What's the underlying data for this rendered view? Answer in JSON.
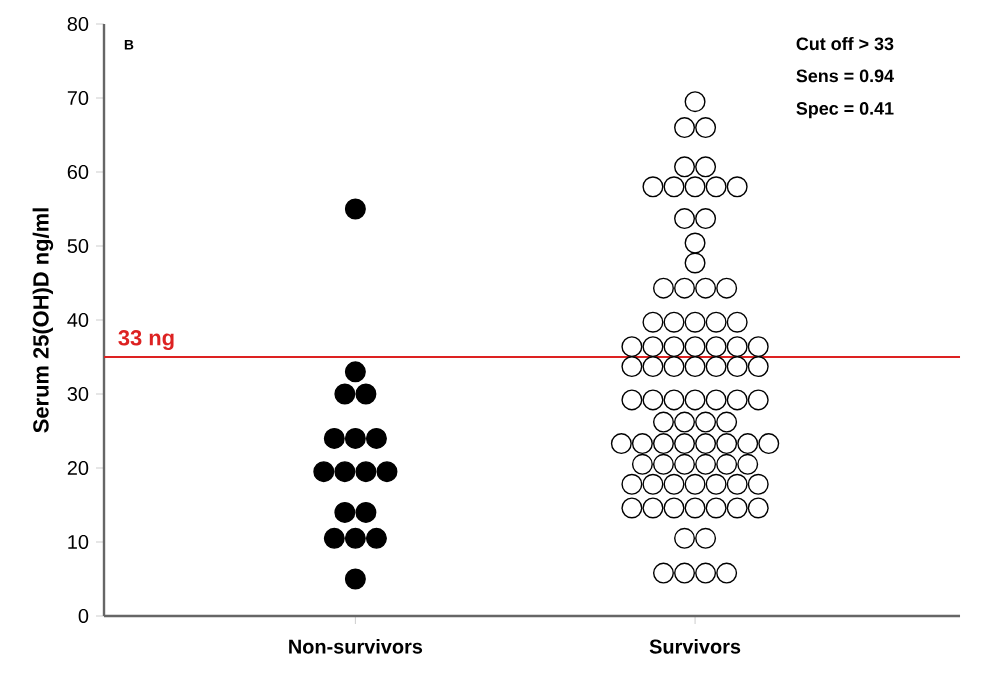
{
  "chart_data": {
    "type": "scatter",
    "ylabel": "Serum 25(OH)D ng/ml",
    "categories": [
      "Non-survivors",
      "Survivors"
    ],
    "series": [
      {
        "x": [
          "Non-survivors",
          "Non-survivors",
          "Non-survivors",
          "Non-survivors",
          "Non-survivors",
          "Non-survivors",
          "Non-survivors",
          "Non-survivors",
          "Non-survivors",
          "Non-survivors",
          "Non-survivors",
          "Non-survivors",
          "Non-survivors",
          "Non-survivors",
          "Non-survivors",
          "Non-survivors",
          "Non-survivors"
        ],
        "values": [
          55,
          33,
          30,
          30,
          24,
          24,
          24,
          19.5,
          19.5,
          19.5,
          19.5,
          14,
          14,
          10.5,
          10.5,
          10.5,
          5
        ],
        "color": "#000000"
      },
      {
        "x": [
          "Survivors",
          "Survivors",
          "Survivors",
          "Survivors",
          "Survivors",
          "Survivors",
          "Survivors",
          "Survivors",
          "Survivors",
          "Survivors",
          "Survivors",
          "Survivors",
          "Survivors",
          "Survivors",
          "Survivors",
          "Survivors",
          "Survivors",
          "Survivors",
          "Survivors",
          "Survivors",
          "Survivors",
          "Survivors",
          "Survivors",
          "Survivors",
          "Survivors",
          "Survivors",
          "Survivors",
          "Survivors",
          "Survivors",
          "Survivors",
          "Survivors",
          "Survivors",
          "Survivors",
          "Survivors",
          "Survivors",
          "Survivors",
          "Survivors",
          "Survivors",
          "Survivors",
          "Survivors",
          "Survivors",
          "Survivors",
          "Survivors",
          "Survivors",
          "Survivors",
          "Survivors",
          "Survivors",
          "Survivors",
          "Survivors",
          "Survivors",
          "Survivors",
          "Survivors",
          "Survivors",
          "Survivors",
          "Survivors",
          "Survivors",
          "Survivors",
          "Survivors",
          "Survivors",
          "Survivors",
          "Survivors",
          "Survivors",
          "Survivors",
          "Survivors",
          "Survivors",
          "Survivors",
          "Survivors",
          "Survivors",
          "Survivors",
          "Survivors",
          "Survivors",
          "Survivors",
          "Survivors",
          "Survivors",
          "Survivors",
          "Survivors",
          "Survivors",
          "Survivors",
          "Survivors",
          "Survivors",
          "Survivors",
          "Survivors"
        ],
        "values": [
          69.5,
          66,
          66,
          60.7,
          60.7,
          58,
          58,
          58,
          58,
          58,
          53.7,
          53.7,
          50.4,
          47.7,
          44.3,
          44.3,
          44.3,
          44.3,
          39.7,
          39.7,
          39.7,
          39.7,
          39.7,
          36.4,
          36.4,
          36.4,
          36.4,
          36.4,
          36.4,
          36.4,
          33.7,
          33.7,
          33.7,
          33.7,
          33.7,
          33.7,
          33.7,
          29.2,
          29.2,
          29.2,
          29.2,
          29.2,
          29.2,
          29.2,
          26.2,
          26.2,
          26.2,
          26.2,
          23.3,
          23.3,
          23.3,
          23.3,
          23.3,
          23.3,
          23.3,
          23.3,
          20.5,
          20.5,
          20.5,
          20.5,
          20.5,
          20.5,
          17.8,
          17.8,
          17.8,
          17.8,
          17.8,
          17.8,
          17.8,
          14.6,
          14.6,
          14.6,
          14.6,
          14.6,
          14.6,
          14.6,
          10.5,
          10.5,
          5.8,
          5.8,
          5.8,
          5.8
        ],
        "color": "#ffffff"
      }
    ],
    "ylim": [
      0,
      80
    ],
    "yticks": [
      0,
      10,
      20,
      30,
      40,
      50,
      60,
      70,
      80
    ],
    "marker": "circle",
    "grid": false,
    "legend": false,
    "ref_lines": [
      {
        "axis": "y",
        "value": 35,
        "label": "33 ng",
        "color": "#dd2222"
      }
    ],
    "annotations": [
      "B",
      "Cut off > 33",
      "Sens = 0.94",
      "Spec = 0.41"
    ]
  }
}
